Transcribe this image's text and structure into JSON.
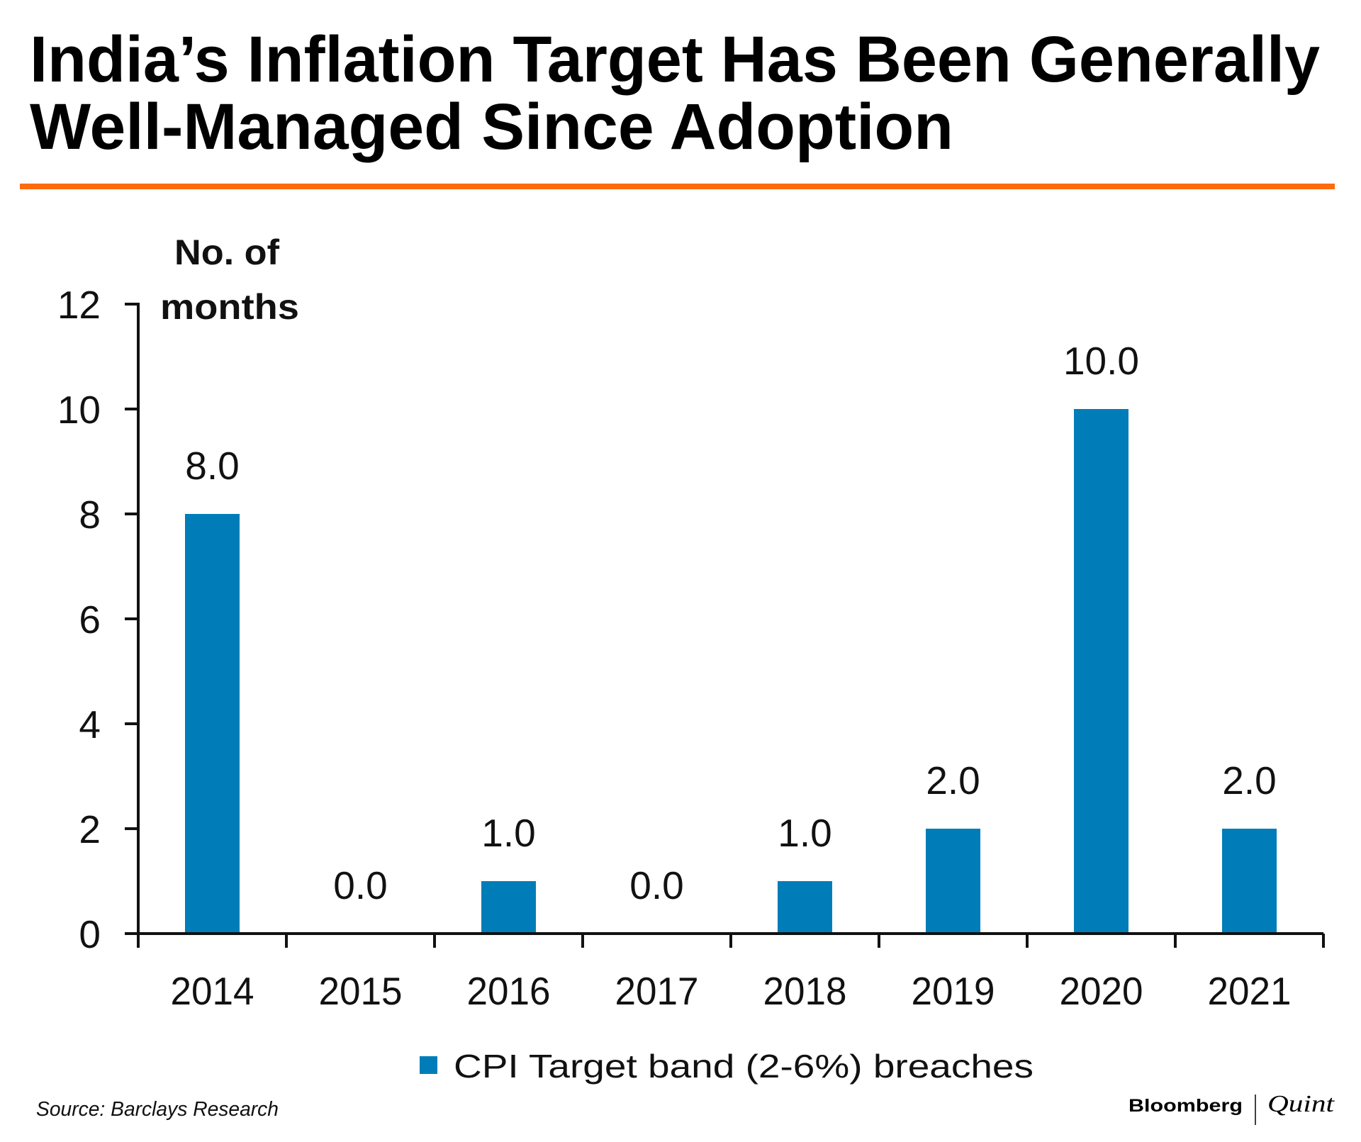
{
  "header": {
    "title_line1": "India’s Inflation Target Has Been Generally",
    "title_line2": "Well-Managed Since Adoption",
    "rule_color": "#FF6A0D"
  },
  "footer": {
    "source": "Source: Barclays Research",
    "logo_left": "Bloomberg",
    "logo_right": "Quint"
  },
  "chart_data": {
    "type": "bar",
    "title": "India’s Inflation Target Has Been Generally Well-Managed Since Adoption",
    "xlabel": "",
    "ylabel": "No. of months",
    "ylabel_lines": [
      "No. of",
      "months"
    ],
    "categories": [
      "2014",
      "2015",
      "2016",
      "2017",
      "2018",
      "2019",
      "2020",
      "2021"
    ],
    "series": [
      {
        "name": "CPI Target band (2-6%) breaches",
        "values": [
          8,
          0,
          1,
          0,
          1,
          2,
          10,
          2
        ],
        "data_labels": [
          "8.0",
          "0.0",
          "1.0",
          "0.0",
          "1.0",
          "2.0",
          "10.0",
          "2.0"
        ],
        "color": "#007DB8"
      }
    ],
    "ylim": [
      0,
      12
    ],
    "yticks": [
      0,
      2,
      4,
      6,
      8,
      10,
      12
    ],
    "ytick_labels": [
      "0",
      "2",
      "4",
      "6",
      "8",
      "10",
      "12"
    ],
    "grid": false,
    "legend": {
      "position": "bottom-center",
      "entries": [
        "CPI Target band (2-6%) breaches"
      ]
    }
  }
}
